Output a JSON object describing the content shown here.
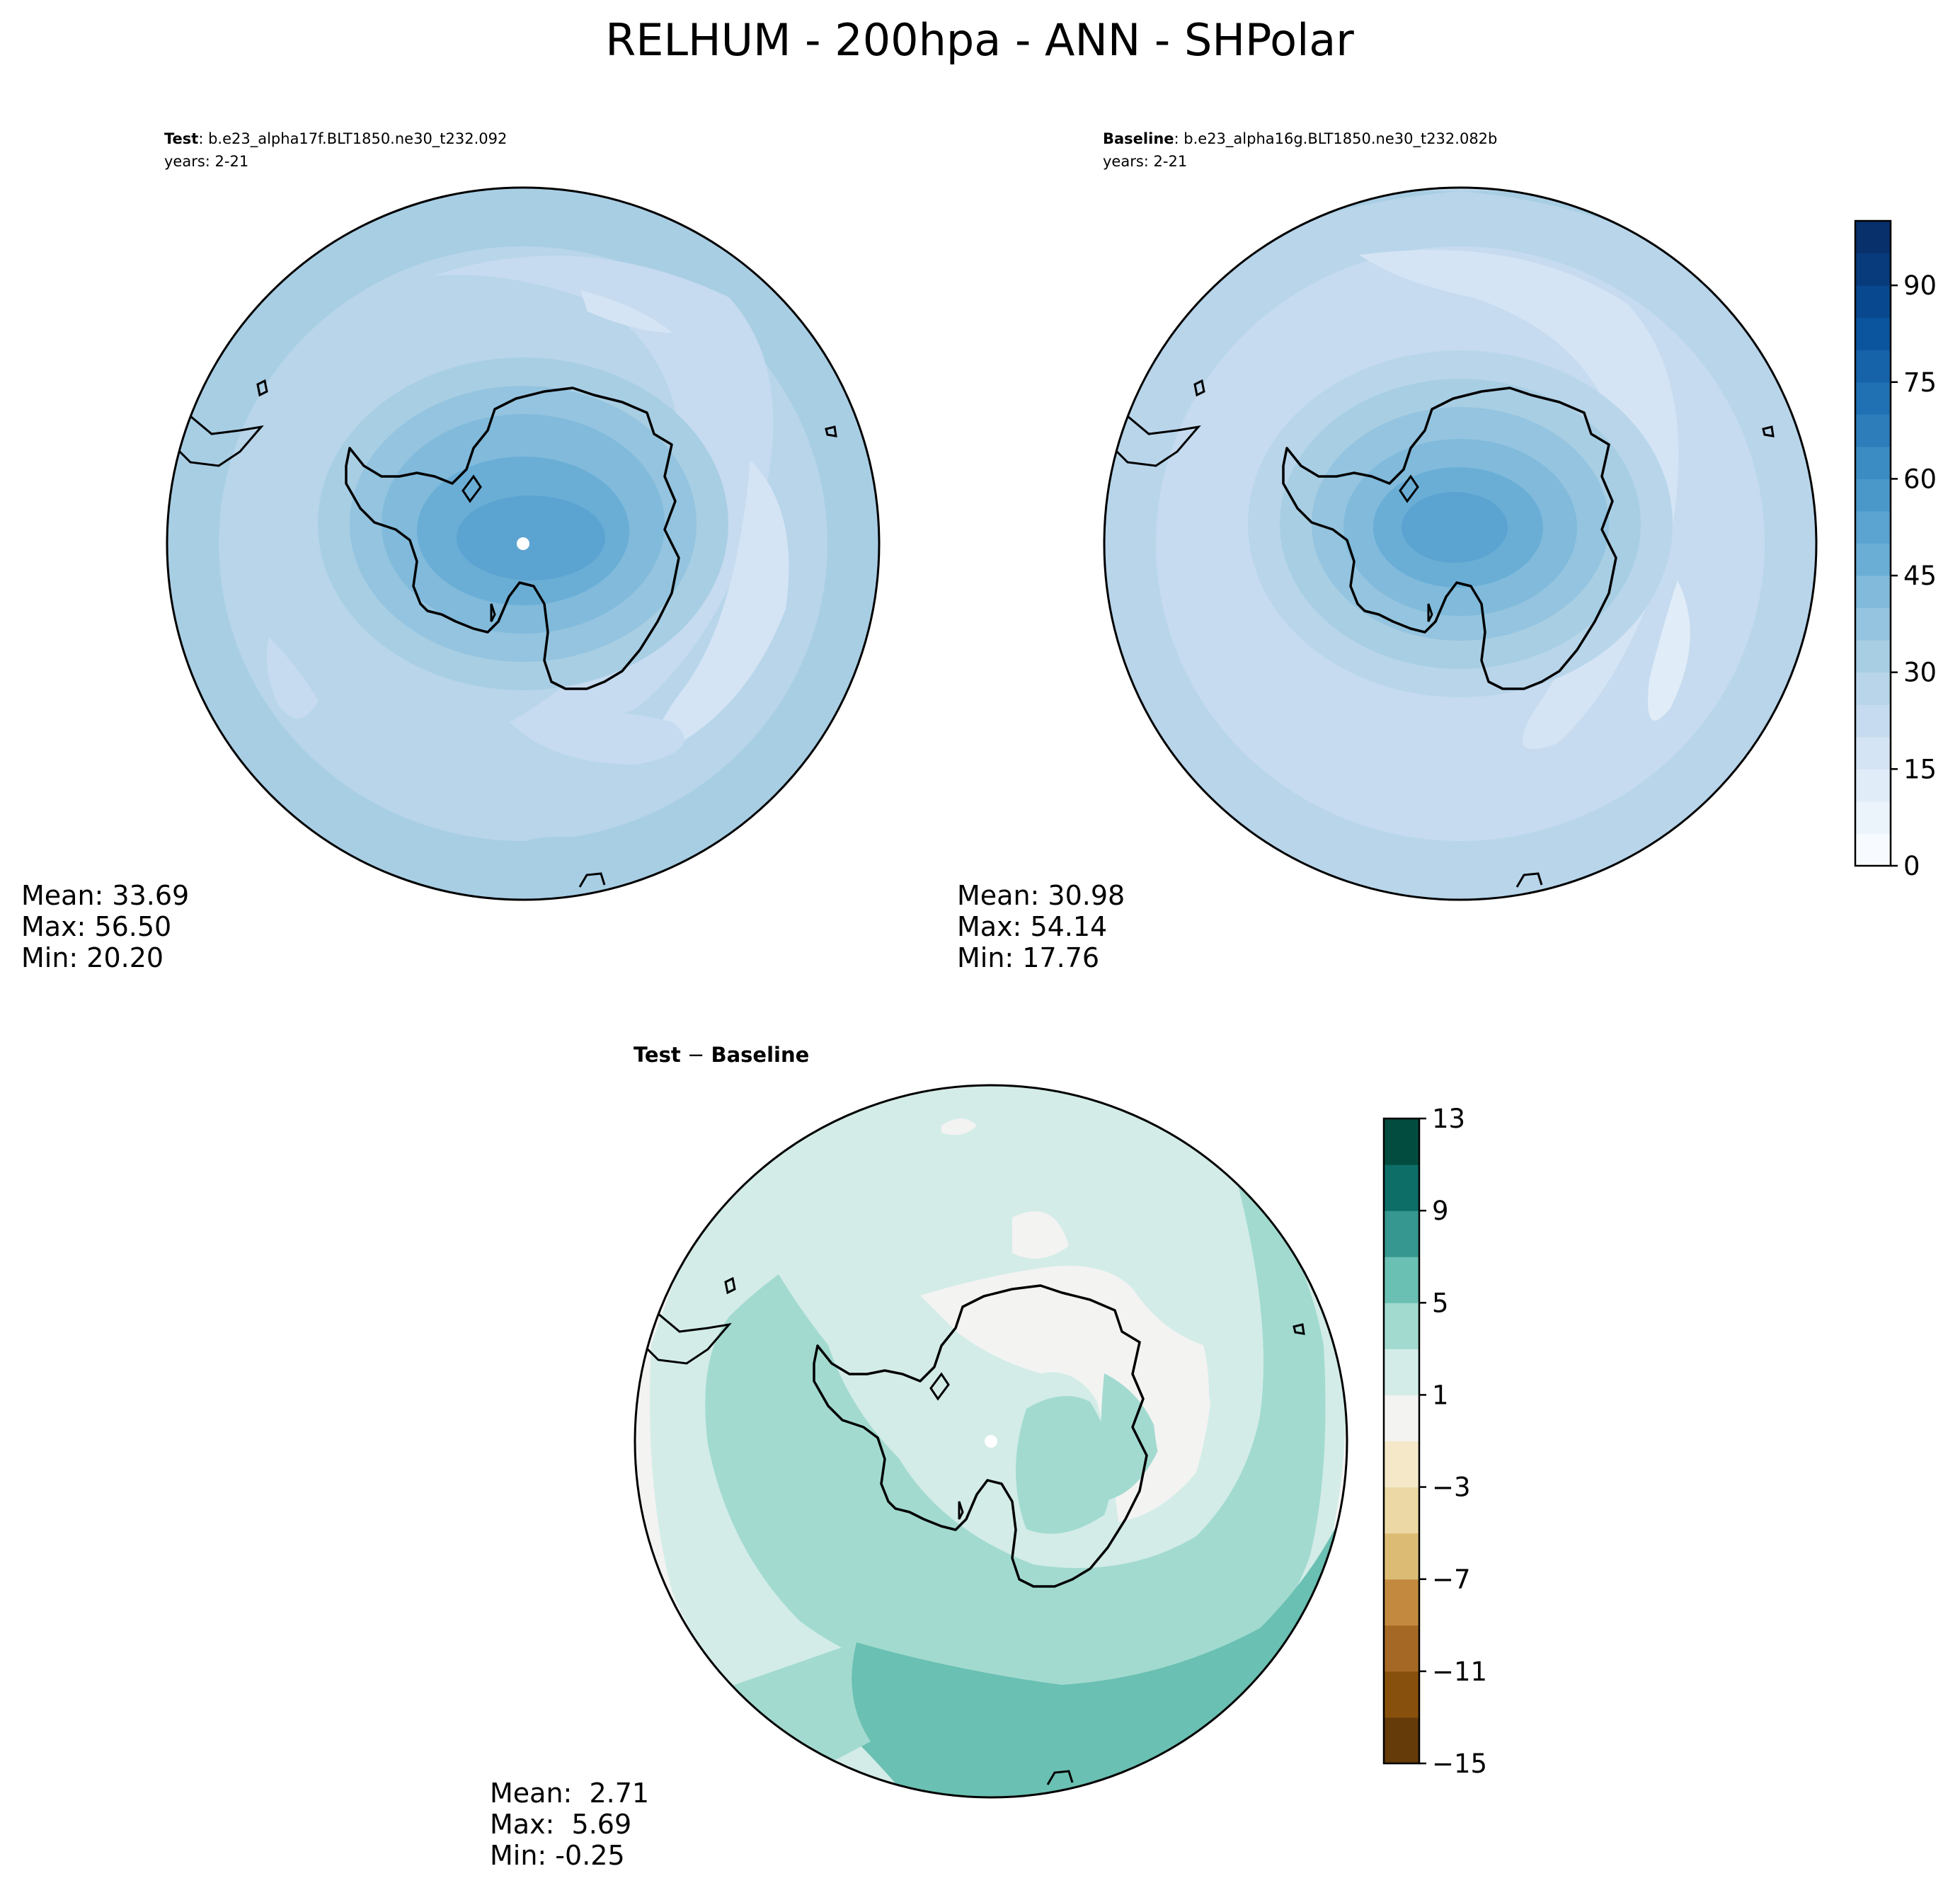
{
  "title": "RELHUM - 200hpa - ANN - SHPolar",
  "panels": {
    "test": {
      "label_bold": "Test",
      "label_rest": ": b.e23_alpha17f.BLT1850.ne30_t232.092",
      "years": "years: 2-21",
      "stats": [
        "Mean: 33.69",
        "Max: 56.50",
        "Min: 20.20"
      ]
    },
    "baseline": {
      "label_bold": "Baseline",
      "label_rest": ": b.e23_alpha16g.BLT1850.ne30_t232.082b",
      "years": "years: 2-21",
      "stats": [
        "Mean: 30.98",
        "Max: 54.14",
        "Min: 17.76"
      ]
    },
    "diff": {
      "label_bold": "Test",
      "label_minus": " − ",
      "label_bold2": "Baseline",
      "stats": [
        "Mean:  2.71",
        "Max:  5.69",
        "Min: -0.25"
      ]
    }
  },
  "colorbars": {
    "top": {
      "min": 0,
      "max": 100,
      "ticks": [
        0,
        15,
        30,
        45,
        60,
        75,
        90
      ],
      "tick_labels": [
        "0",
        "15",
        "30",
        "45",
        "60",
        "75",
        "90"
      ],
      "colors": [
        "#f7fbff",
        "#ebf3fb",
        "#e0ecf8",
        "#d4e4f4",
        "#c6dbef",
        "#b8d5ea",
        "#a8cee4",
        "#94c4df",
        "#81badb",
        "#6aaed6",
        "#5ba3d0",
        "#4a98c9",
        "#3a8cc2",
        "#2d7dbb",
        "#2070b4",
        "#1663aa",
        "#0b559f",
        "#08488e",
        "#083b7c",
        "#08306b"
      ]
    },
    "bottom": {
      "min": -15,
      "max": 13,
      "ticks": [
        -15,
        -11,
        -7,
        -3,
        1,
        5,
        9,
        13
      ],
      "tick_labels": [
        "−15",
        "−11",
        "−7",
        "−3",
        "1",
        "5",
        "9",
        "13"
      ],
      "colors": [
        "#643b09",
        "#87500c",
        "#a56925",
        "#c38a3f",
        "#dcbc75",
        "#ecd8a4",
        "#f4e8c9",
        "#f3f3f2",
        "#d3ece8",
        "#a2dad0",
        "#6ac0b2",
        "#35978f",
        "#0d6e67",
        "#024c3f"
      ]
    }
  }
}
